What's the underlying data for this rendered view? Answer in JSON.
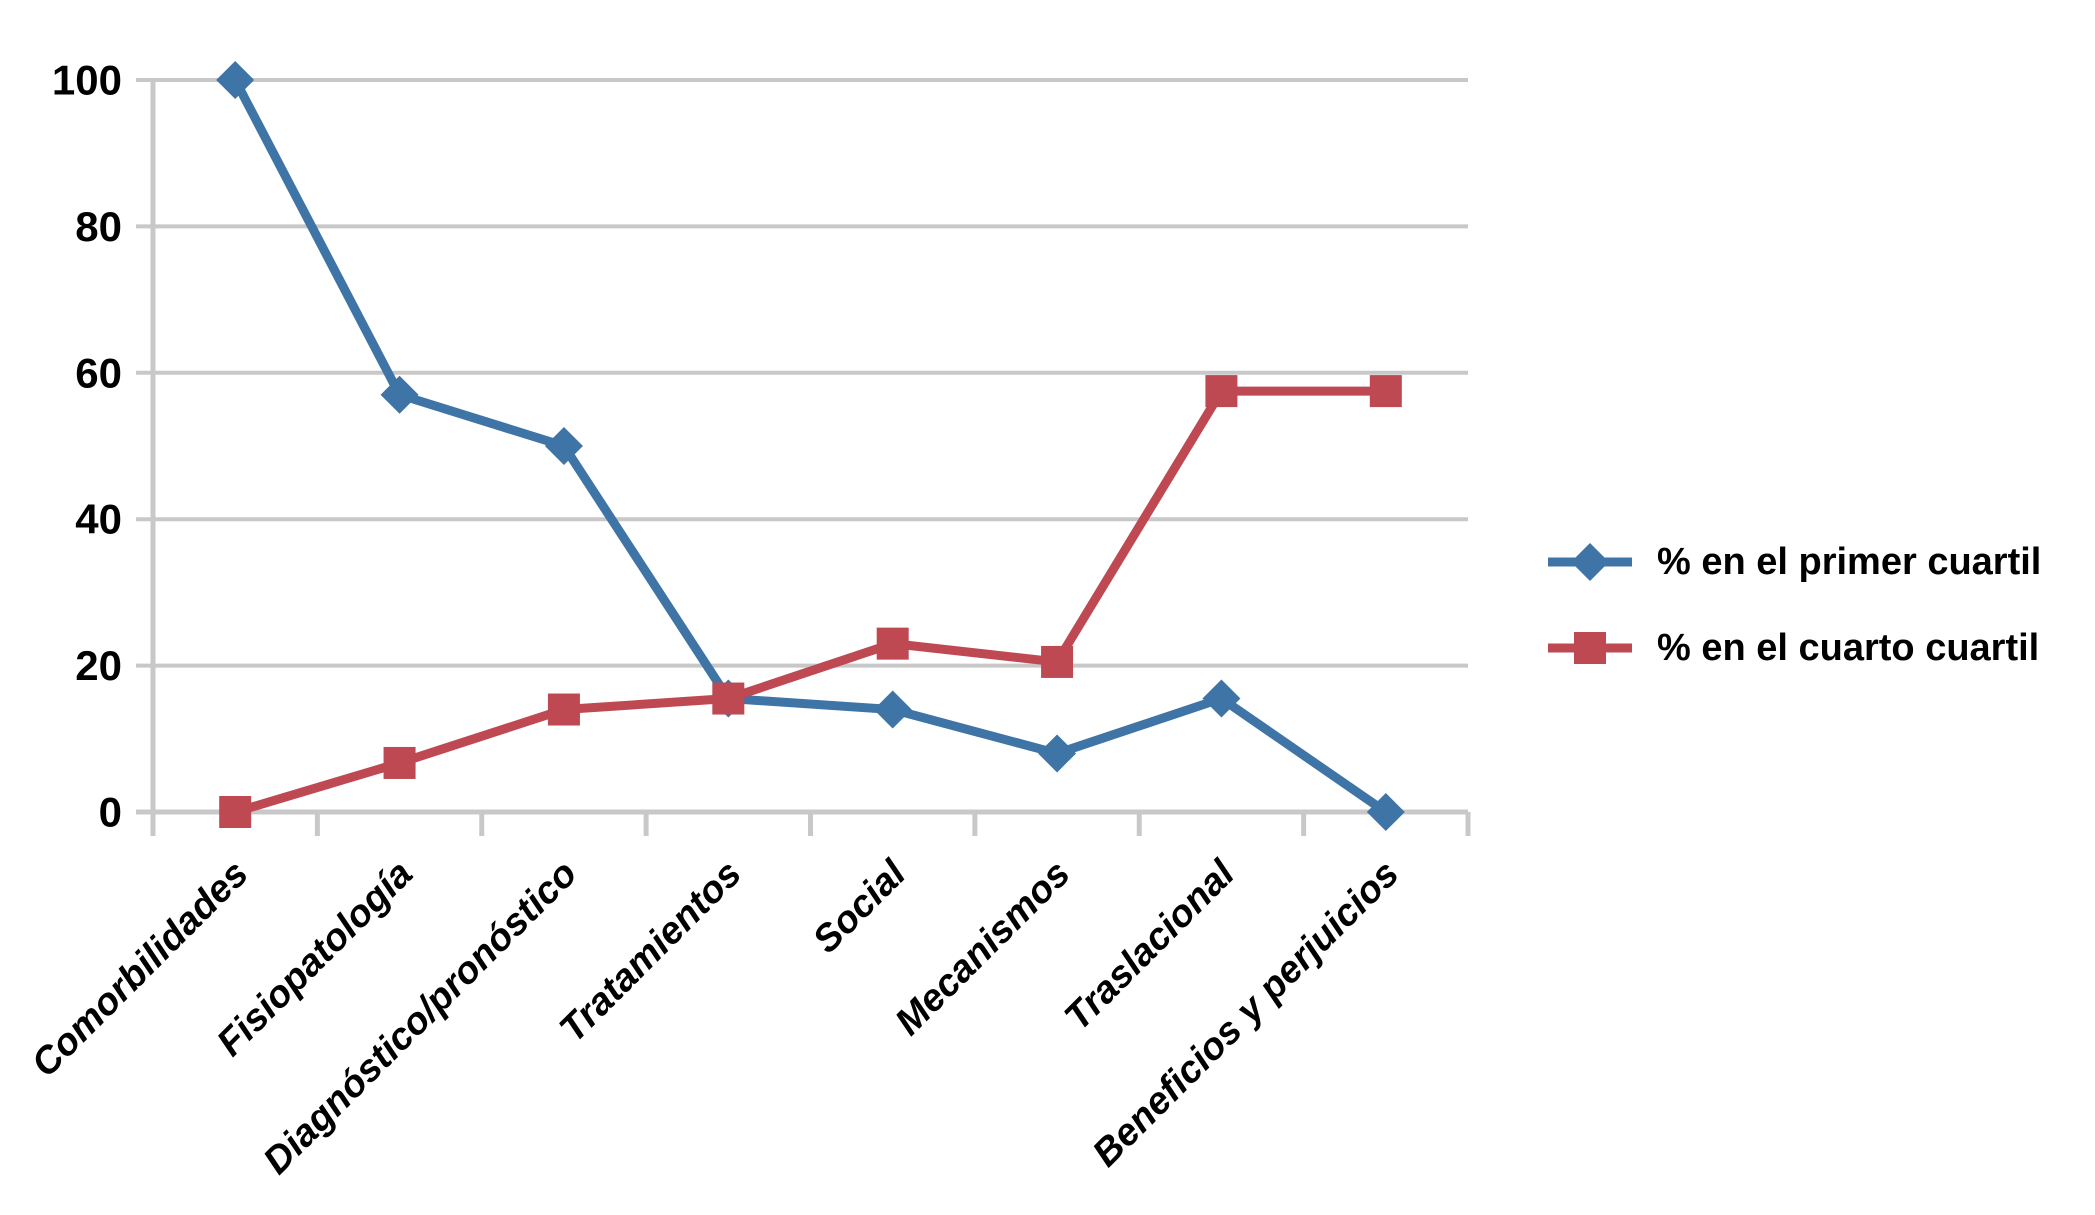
{
  "chart_data": {
    "type": "line",
    "title": "",
    "xlabel": "",
    "ylabel": "",
    "categories": [
      "Comorbilidades",
      "Fisiopatología",
      "Diagnóstico/pronóstico",
      "Tratamientos",
      "Social",
      "Mecanismos",
      "Traslacional",
      "Beneficios y perjuicios"
    ],
    "series": [
      {
        "name": "% en el primer cuartil",
        "marker": "diamond",
        "color": "#3f74a6",
        "values": [
          100,
          57,
          50,
          15.5,
          14,
          8,
          15.5,
          0
        ]
      },
      {
        "name": "% en el cuarto cuartil",
        "marker": "square",
        "color": "#be4952",
        "values": [
          0,
          6.7,
          14,
          15.5,
          23,
          20.5,
          57.5,
          57.5
        ]
      }
    ],
    "ylim": [
      0,
      100
    ],
    "yticks": [
      0,
      20,
      40,
      60,
      80,
      100
    ],
    "grid": true,
    "grid_color": "#c8c8c8",
    "axis_color": "#c8c8c8",
    "text_color": "#000000",
    "background": "#ffffff",
    "legend_position": "right"
  }
}
